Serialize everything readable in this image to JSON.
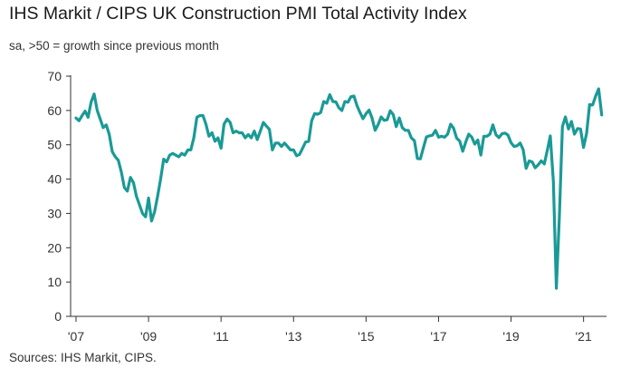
{
  "title": "IHS Markit / CIPS UK Construction PMI Total Activity Index",
  "subtitle": "sa, >50 = growth since previous month",
  "source": "Sources: IHS Markit, CIPS.",
  "colors": {
    "line": "#1a9a96",
    "axis": "#333333"
  },
  "chart_data": {
    "type": "line",
    "title": "IHS Markit / CIPS UK Construction PMI Total Activity Index",
    "subtitle": "sa, >50 = growth since previous month",
    "xlabel": "",
    "ylabel": "",
    "ylim": [
      0,
      70
    ],
    "yticks": [
      0,
      10,
      20,
      30,
      40,
      50,
      60,
      70
    ],
    "xlim": [
      "2007-01",
      "2021-08"
    ],
    "xticks": [
      {
        "label": "'07",
        "date": "2007-01"
      },
      {
        "label": "'09",
        "date": "2009-01"
      },
      {
        "label": "'11",
        "date": "2011-01"
      },
      {
        "label": "'13",
        "date": "2013-01"
      },
      {
        "label": "'15",
        "date": "2015-01"
      },
      {
        "label": "'17",
        "date": "2017-01"
      },
      {
        "label": "'19",
        "date": "2019-01"
      },
      {
        "label": "'21",
        "date": "2021-01"
      }
    ],
    "grid": false,
    "series": [
      {
        "name": "",
        "points": [
          [
            "2007-01",
            57.8
          ],
          [
            "2007-02",
            57.0
          ],
          [
            "2007-03",
            58.5
          ],
          [
            "2007-04",
            59.8
          ],
          [
            "2007-05",
            58.0
          ],
          [
            "2007-06",
            62.5
          ],
          [
            "2007-07",
            64.8
          ],
          [
            "2007-08",
            60.0
          ],
          [
            "2007-09",
            57.5
          ],
          [
            "2007-10",
            55.0
          ],
          [
            "2007-11",
            55.8
          ],
          [
            "2007-12",
            53.0
          ],
          [
            "2008-01",
            48.0
          ],
          [
            "2008-02",
            46.5
          ],
          [
            "2008-03",
            45.5
          ],
          [
            "2008-04",
            42.0
          ],
          [
            "2008-05",
            37.5
          ],
          [
            "2008-06",
            36.5
          ],
          [
            "2008-07",
            40.5
          ],
          [
            "2008-08",
            39.0
          ],
          [
            "2008-09",
            35.0
          ],
          [
            "2008-10",
            32.5
          ],
          [
            "2008-11",
            30.0
          ],
          [
            "2008-12",
            29.0
          ],
          [
            "2009-01",
            34.5
          ],
          [
            "2009-02",
            27.8
          ],
          [
            "2009-03",
            30.5
          ],
          [
            "2009-04",
            35.0
          ],
          [
            "2009-05",
            40.0
          ],
          [
            "2009-06",
            45.8
          ],
          [
            "2009-07",
            45.0
          ],
          [
            "2009-08",
            47.0
          ],
          [
            "2009-09",
            47.5
          ],
          [
            "2009-10",
            47.0
          ],
          [
            "2009-11",
            46.5
          ],
          [
            "2009-12",
            47.5
          ],
          [
            "2010-01",
            47.0
          ],
          [
            "2010-02",
            48.5
          ],
          [
            "2010-03",
            48.5
          ],
          [
            "2010-04",
            52.0
          ],
          [
            "2010-05",
            58.0
          ],
          [
            "2010-06",
            58.5
          ],
          [
            "2010-07",
            58.5
          ],
          [
            "2010-08",
            56.0
          ],
          [
            "2010-09",
            52.5
          ],
          [
            "2010-10",
            53.5
          ],
          [
            "2010-11",
            51.0
          ],
          [
            "2010-12",
            52.0
          ],
          [
            "2011-01",
            49.0
          ],
          [
            "2011-02",
            56.0
          ],
          [
            "2011-03",
            57.5
          ],
          [
            "2011-04",
            56.5
          ],
          [
            "2011-05",
            53.5
          ],
          [
            "2011-06",
            54.0
          ],
          [
            "2011-07",
            53.5
          ],
          [
            "2011-08",
            53.5
          ],
          [
            "2011-09",
            52.0
          ],
          [
            "2011-10",
            53.0
          ],
          [
            "2011-11",
            52.0
          ],
          [
            "2011-12",
            54.0
          ],
          [
            "2012-01",
            51.5
          ],
          [
            "2012-02",
            54.0
          ],
          [
            "2012-03",
            56.5
          ],
          [
            "2012-04",
            55.5
          ],
          [
            "2012-05",
            54.5
          ],
          [
            "2012-06",
            48.5
          ],
          [
            "2012-07",
            50.5
          ],
          [
            "2012-08",
            50.5
          ],
          [
            "2012-09",
            49.5
          ],
          [
            "2012-10",
            50.5
          ],
          [
            "2012-11",
            49.5
          ],
          [
            "2012-12",
            48.5
          ],
          [
            "2013-01",
            48.5
          ],
          [
            "2013-02",
            46.8
          ],
          [
            "2013-03",
            47.2
          ],
          [
            "2013-04",
            49.0
          ],
          [
            "2013-05",
            50.8
          ],
          [
            "2013-06",
            51.0
          ],
          [
            "2013-07",
            57.0
          ],
          [
            "2013-08",
            59.1
          ],
          [
            "2013-09",
            58.9
          ],
          [
            "2013-10",
            59.4
          ],
          [
            "2013-11",
            62.6
          ],
          [
            "2013-12",
            62.1
          ],
          [
            "2014-01",
            64.6
          ],
          [
            "2014-02",
            62.6
          ],
          [
            "2014-03",
            62.5
          ],
          [
            "2014-04",
            60.8
          ],
          [
            "2014-05",
            60.0
          ],
          [
            "2014-06",
            62.6
          ],
          [
            "2014-07",
            62.4
          ],
          [
            "2014-08",
            64.0
          ],
          [
            "2014-09",
            64.2
          ],
          [
            "2014-10",
            61.4
          ],
          [
            "2014-11",
            59.4
          ],
          [
            "2014-12",
            57.6
          ],
          [
            "2015-01",
            59.1
          ],
          [
            "2015-02",
            60.1
          ],
          [
            "2015-03",
            57.8
          ],
          [
            "2015-04",
            54.2
          ],
          [
            "2015-05",
            55.9
          ],
          [
            "2015-06",
            58.1
          ],
          [
            "2015-07",
            57.1
          ],
          [
            "2015-08",
            57.3
          ],
          [
            "2015-09",
            59.9
          ],
          [
            "2015-10",
            58.8
          ],
          [
            "2015-11",
            55.3
          ],
          [
            "2015-12",
            57.8
          ],
          [
            "2016-01",
            55.0
          ],
          [
            "2016-02",
            54.2
          ],
          [
            "2016-03",
            54.2
          ],
          [
            "2016-04",
            52.0
          ],
          [
            "2016-05",
            51.2
          ],
          [
            "2016-06",
            46.0
          ],
          [
            "2016-07",
            45.9
          ],
          [
            "2016-08",
            49.2
          ],
          [
            "2016-09",
            52.3
          ],
          [
            "2016-10",
            52.6
          ],
          [
            "2016-11",
            52.8
          ],
          [
            "2016-12",
            54.2
          ],
          [
            "2017-01",
            52.2
          ],
          [
            "2017-02",
            52.5
          ],
          [
            "2017-03",
            52.2
          ],
          [
            "2017-04",
            53.1
          ],
          [
            "2017-05",
            56.0
          ],
          [
            "2017-06",
            54.8
          ],
          [
            "2017-07",
            51.9
          ],
          [
            "2017-08",
            51.1
          ],
          [
            "2017-09",
            48.1
          ],
          [
            "2017-10",
            50.8
          ],
          [
            "2017-11",
            53.1
          ],
          [
            "2017-12",
            52.2
          ],
          [
            "2018-01",
            50.2
          ],
          [
            "2018-02",
            51.4
          ],
          [
            "2018-03",
            47.0
          ],
          [
            "2018-04",
            52.5
          ],
          [
            "2018-05",
            52.5
          ],
          [
            "2018-06",
            53.1
          ],
          [
            "2018-07",
            55.8
          ],
          [
            "2018-08",
            52.9
          ],
          [
            "2018-09",
            52.1
          ],
          [
            "2018-10",
            53.2
          ],
          [
            "2018-11",
            53.4
          ],
          [
            "2018-12",
            52.8
          ],
          [
            "2019-01",
            50.6
          ],
          [
            "2019-02",
            49.5
          ],
          [
            "2019-03",
            49.7
          ],
          [
            "2019-04",
            50.5
          ],
          [
            "2019-05",
            48.6
          ],
          [
            "2019-06",
            43.1
          ],
          [
            "2019-07",
            45.3
          ],
          [
            "2019-08",
            45.0
          ],
          [
            "2019-09",
            43.3
          ],
          [
            "2019-10",
            44.2
          ],
          [
            "2019-11",
            45.3
          ],
          [
            "2019-12",
            44.4
          ],
          [
            "2020-01",
            48.4
          ],
          [
            "2020-02",
            52.6
          ],
          [
            "2020-03",
            39.3
          ],
          [
            "2020-04",
            8.2
          ],
          [
            "2020-05",
            28.9
          ],
          [
            "2020-06",
            55.3
          ],
          [
            "2020-07",
            58.1
          ],
          [
            "2020-08",
            54.6
          ],
          [
            "2020-09",
            56.8
          ],
          [
            "2020-10",
            53.1
          ],
          [
            "2020-11",
            54.7
          ],
          [
            "2020-12",
            54.6
          ],
          [
            "2021-01",
            49.2
          ],
          [
            "2021-02",
            53.3
          ],
          [
            "2021-03",
            61.7
          ],
          [
            "2021-04",
            61.6
          ],
          [
            "2021-05",
            64.2
          ],
          [
            "2021-06",
            66.3
          ],
          [
            "2021-07",
            58.7
          ]
        ]
      }
    ]
  }
}
